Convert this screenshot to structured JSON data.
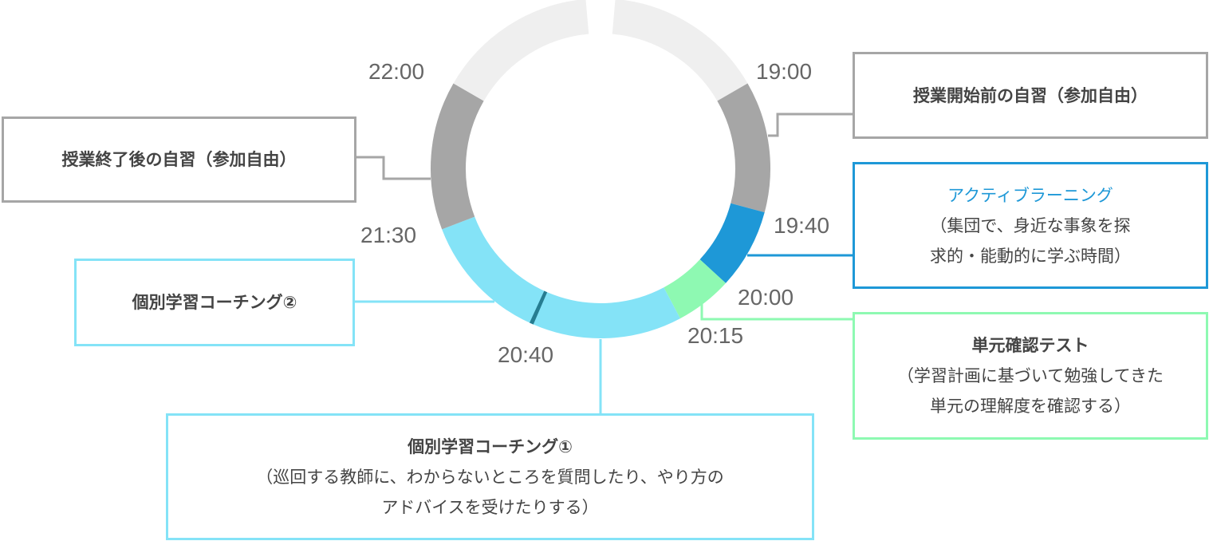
{
  "colors": {
    "self_study": "#a6a6a6",
    "outside": "#efefef",
    "active_learning": "#1e98d7",
    "unit_test": "#8ef9b2",
    "coaching": "#84e3f7",
    "divider": "#267d91"
  },
  "times": {
    "t1900": "19:00",
    "t1940": "19:40",
    "t2000": "20:00",
    "t2015": "20:15",
    "t2040": "20:40",
    "t2130": "21:30",
    "t2200": "22:00"
  },
  "boxes": {
    "pre_study": {
      "title": "授業開始前の自習（参加自由）"
    },
    "post_study": {
      "title": "授業終了後の自習（参加自由）"
    },
    "active_learning": {
      "title": "アクティブラーニング",
      "desc1": "（集団で、身近な事象を探",
      "desc2": "求的・能動的に学ぶ時間）"
    },
    "unit_test": {
      "title": "単元確認テスト",
      "desc1": "（学習計画に基づいて勉強してきた",
      "desc2": "単元の理解度を確認する）"
    },
    "coaching2": {
      "title": "個別学習コーチング②"
    },
    "coaching1": {
      "title": "個別学習コーチング①",
      "desc1": "（巡回する教師に、わからないところを質問したり、やり方の",
      "desc2": "アドバイスを受けたりする）"
    }
  }
}
